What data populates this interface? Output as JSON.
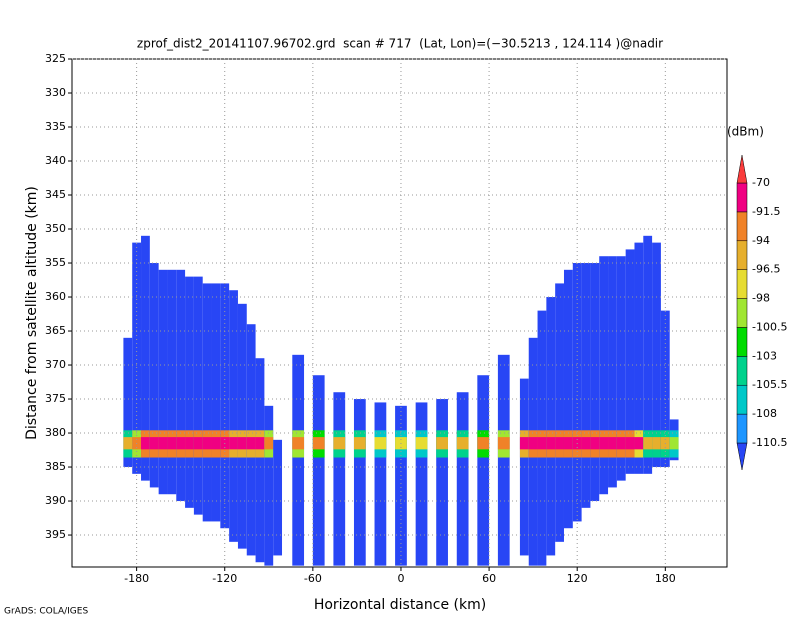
{
  "chart_data": {
    "type": "beam-profile",
    "title": "zprof_dist2_20141107.96702.grd  scan # 717  (Lat, Lon)=(−30.5213 , 124.114 )@nadir",
    "x_label": "Horizontal distance (km)",
    "y_label": "Distance from satellite altitude (km)",
    "footer": "GrADS: COLA/IGES",
    "xlim": [
      -224,
      222
    ],
    "ylim": [
      325,
      399.7
    ],
    "y_inverted": true,
    "xticks": [
      -180,
      -120,
      -60,
      0,
      60,
      120,
      180
    ],
    "yticks": [
      325,
      330,
      335,
      340,
      345,
      350,
      355,
      360,
      365,
      370,
      375,
      380,
      385,
      390,
      395
    ],
    "grid": true,
    "beams": {
      "x": [
        -186,
        -180,
        -174,
        -168,
        -162,
        -156,
        -150,
        -144,
        -138,
        -132,
        -126,
        -120,
        -114,
        -108,
        -102,
        -96,
        -90,
        -84,
        -70,
        -56,
        -42,
        -28,
        -14,
        0,
        14,
        28,
        42,
        56,
        70,
        84,
        90,
        96,
        102,
        108,
        114,
        120,
        126,
        132,
        138,
        144,
        150,
        156,
        162,
        168,
        174,
        180,
        186
      ],
      "top": [
        366,
        352,
        351,
        355,
        356,
        356,
        356,
        357,
        357,
        358,
        358,
        358,
        359,
        361,
        364,
        369,
        376,
        381,
        368.5,
        371.5,
        374,
        375,
        375.5,
        376,
        375.5,
        375,
        374,
        371.5,
        368.5,
        372,
        366,
        362,
        360,
        358,
        356,
        355,
        355,
        355,
        354,
        354,
        354,
        353,
        352,
        351,
        352,
        362,
        378
      ],
      "bottom": [
        385,
        386,
        387,
        388,
        389,
        389,
        390,
        391,
        392,
        393,
        393,
        394,
        396,
        397,
        398,
        399,
        399.5,
        398,
        399.5,
        399.5,
        399.5,
        399.5,
        399.5,
        399.5,
        399.5,
        399.5,
        399.5,
        399.5,
        399.5,
        398,
        399.5,
        399.5,
        398,
        396,
        394,
        393,
        391,
        390,
        389,
        388,
        387,
        386,
        386,
        386,
        385,
        385,
        384
      ],
      "peak": [
        -96,
        -92,
        -85,
        -85,
        -85,
        -85,
        -85,
        -85,
        -85,
        -85,
        -85,
        -85,
        -88,
        -88,
        -88,
        -88,
        -92,
        -100,
        -92,
        -94,
        -96,
        -96,
        -98,
        -98,
        -98,
        -96,
        -96,
        -94,
        -92,
        -88,
        -85,
        -85,
        -85,
        -85,
        -85,
        -85,
        -85,
        -85,
        -85,
        -85,
        -85,
        -85,
        -90,
        -96,
        -96,
        -96,
        -100
      ]
    },
    "colorbar": {
      "unit": "(dBm)",
      "levels": [
        -110.5,
        -108,
        -105.5,
        -103,
        -100.5,
        -98,
        -96.5,
        -94,
        -91.5,
        -70
      ],
      "colors": [
        "#2846f5",
        "#1e96ff",
        "#00c8c8",
        "#00d28c",
        "#00dc00",
        "#a0e632",
        "#e6dc32",
        "#e6af2d",
        "#f08228",
        "#f00082",
        "#fa3c3c"
      ]
    }
  }
}
